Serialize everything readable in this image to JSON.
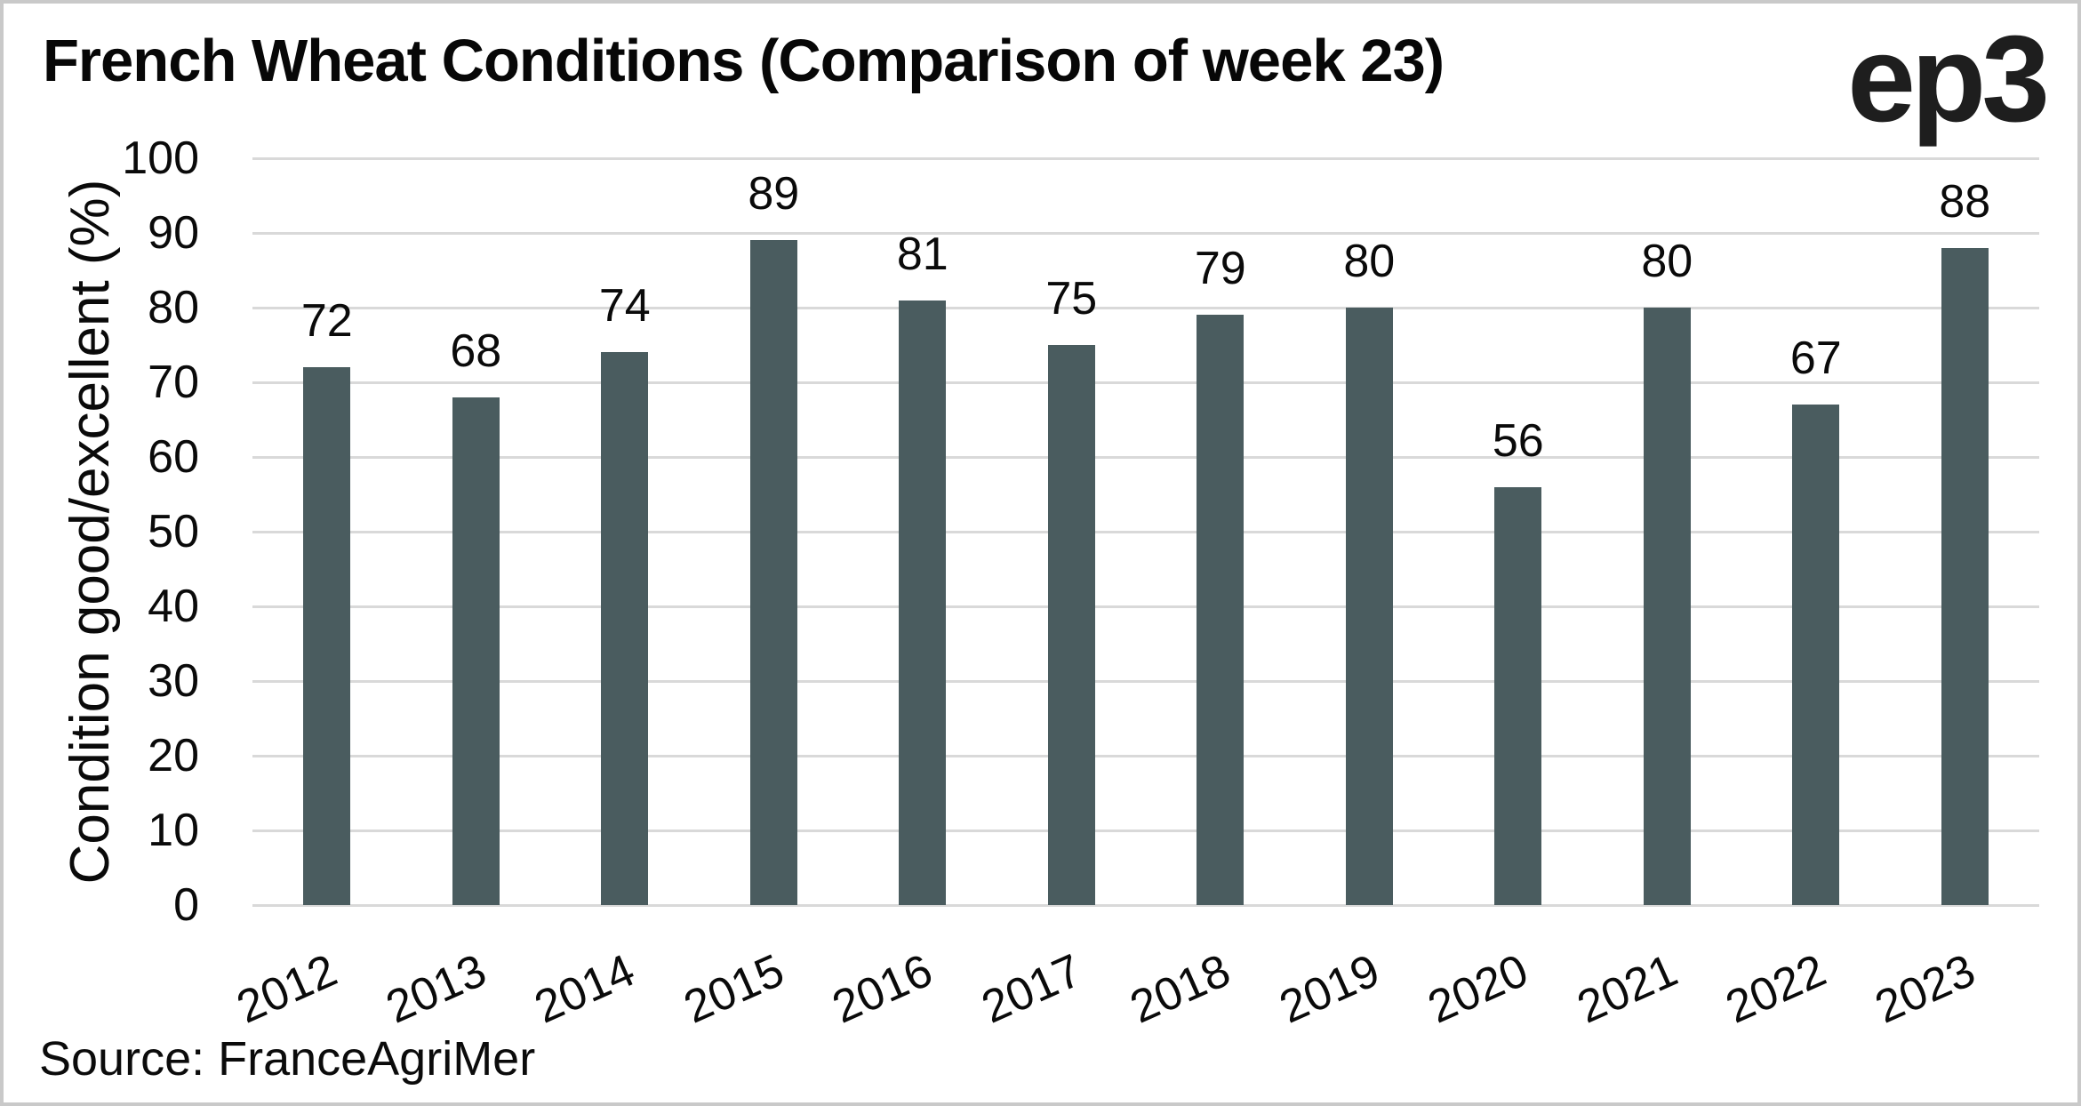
{
  "header": {
    "title": "French Wheat Conditions (Comparison of week 23)",
    "logo_text": "ep3"
  },
  "chart_data": {
    "type": "bar",
    "title": "French Wheat Conditions (Comparison of week 23)",
    "categories": [
      "2012",
      "2013",
      "2014",
      "2015",
      "2016",
      "2017",
      "2018",
      "2019",
      "2020",
      "2021",
      "2022",
      "2023"
    ],
    "values": [
      72,
      68,
      74,
      89,
      81,
      75,
      79,
      80,
      56,
      80,
      67,
      88
    ],
    "xlabel": "",
    "ylabel": "Condition good/excellent (%)",
    "ylim": [
      0,
      100
    ],
    "ytick_step": 10,
    "grid": "horizontal",
    "legend": "none",
    "data_labels_shown": true,
    "x_tick_rotation_deg": -24,
    "bar_color": "#4a5c5f",
    "gridline_color": "#d9d9d9",
    "text_color": "#0a0a0a"
  },
  "footer": {
    "source": "Source: FranceAgriMer"
  }
}
